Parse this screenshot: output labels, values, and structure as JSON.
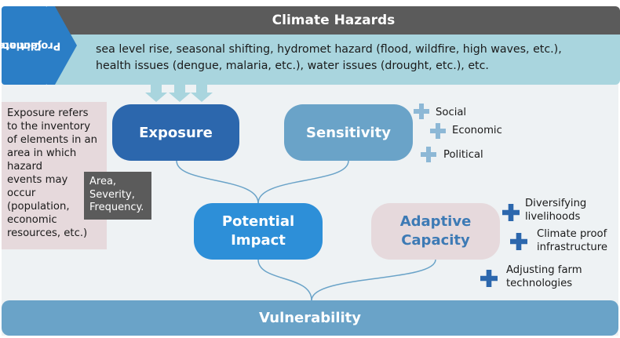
{
  "climate_projection": {
    "line1": "Climate",
    "line2": "Projection"
  },
  "climate_hazards": {
    "title": "Climate Hazards",
    "line1": "sea level rise, seasonal shifting, hydromet hazard (flood, wildfire, high waves, etc.),",
    "line2": "health issues (dengue, malaria, etc.), water issues (drought, etc.), etc."
  },
  "exposure": {
    "label": "Exposure",
    "note_lines": [
      "Exposure refers",
      "to the inventory",
      "of elements in an",
      "area in which",
      "hazard",
      "events may",
      "occur",
      "(population,",
      "economic",
      "resources, etc.)"
    ],
    "factors": [
      "Area,",
      "Severity,",
      "Frequency."
    ]
  },
  "sensitivity": {
    "label": "Sensitivity",
    "items": [
      "Social",
      "Economic",
      "Political"
    ]
  },
  "potential_impact": {
    "line1": "Potential",
    "line2": "Impact"
  },
  "adaptive_capacity": {
    "line1": "Adaptive",
    "line2": "Capacity",
    "items": [
      {
        "line1": "Diversifying",
        "line2": "livelihoods"
      },
      {
        "line1": "Climate proof",
        "line2": "infrastructure"
      },
      {
        "line1": "Adjusting farm",
        "line2": "technologies"
      }
    ]
  },
  "vulnerability": {
    "label": "Vulnerability"
  },
  "colors": {
    "dark_blue": "#2c67ad",
    "mid_blue": "#2d8fd8",
    "light_blue": "#6aa3c8",
    "hazard_fill": "#a9d5de",
    "header_grey": "#5b5b5b",
    "pink_grey": "#e6d9dc"
  }
}
